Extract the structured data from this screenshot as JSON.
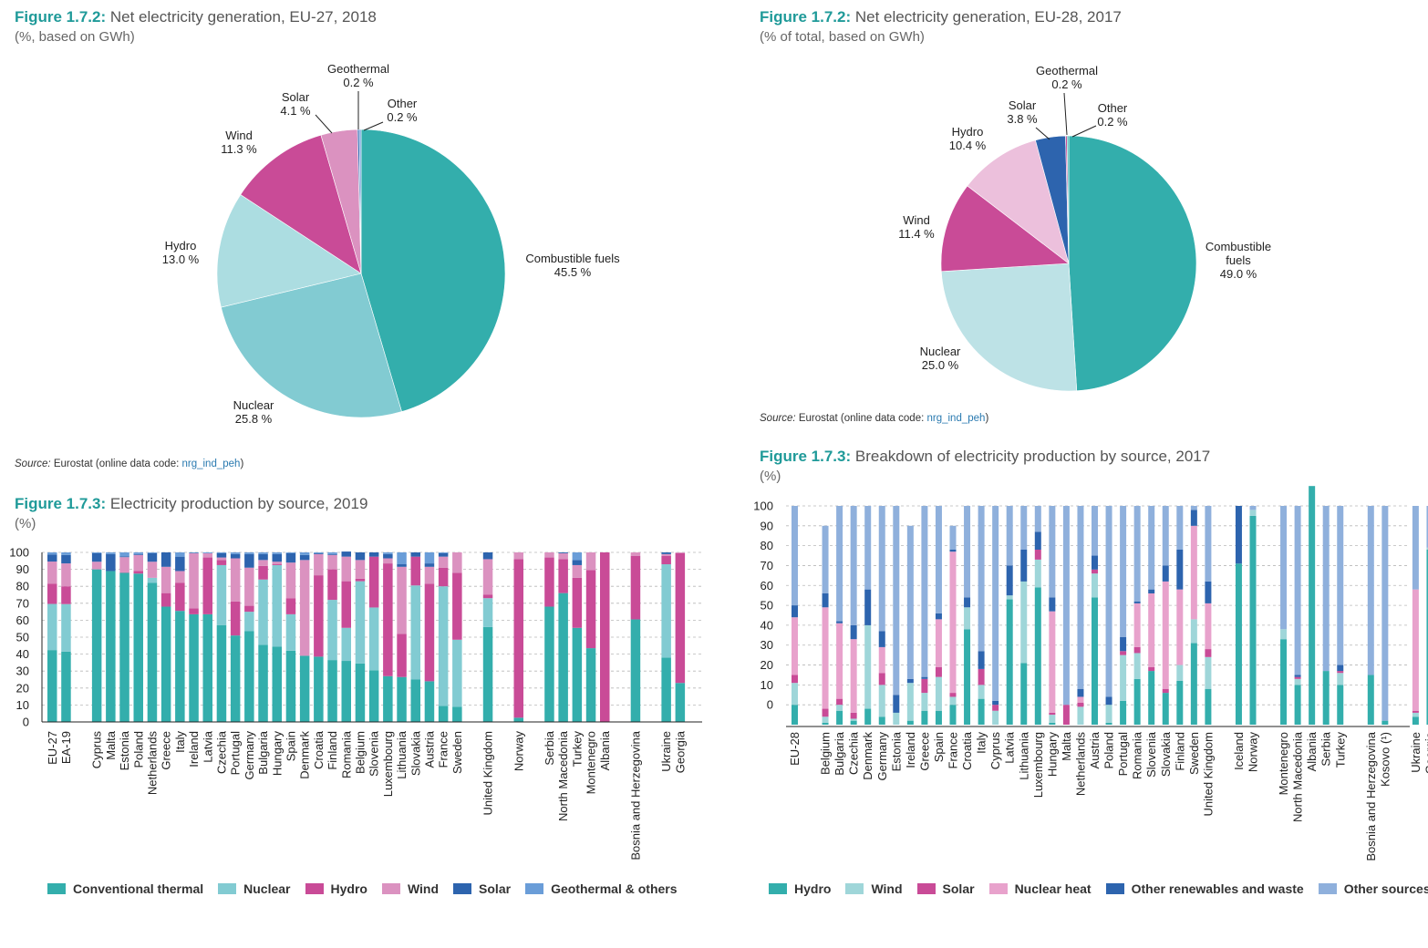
{
  "chart_data": [
    {
      "id": "pie2018",
      "type": "pie",
      "figure_number": "Figure 1.7.2:",
      "title": "Net electricity generation, EU-27, 2018",
      "subtitle": "(%, based on GWh)",
      "source_label": "Source:",
      "source_text": " Eurostat (online data code: ",
      "source_code": "nrg_ind_peh",
      "source_end": ")",
      "slices": [
        {
          "name": "Combustible fuels",
          "value": 45.5,
          "label": "45.5 %",
          "color": "#33aeac"
        },
        {
          "name": "Nuclear",
          "value": 25.8,
          "label": "25.8 %",
          "color": "#82cbd2"
        },
        {
          "name": "Hydro",
          "value": 13.0,
          "label": "13.0 %",
          "color": "#acdde1"
        },
        {
          "name": "Wind",
          "value": 11.3,
          "label": "11.3 %",
          "color": "#c94b97"
        },
        {
          "name": "Solar",
          "value": 4.1,
          "label": "4.1 %",
          "color": "#db92c0"
        },
        {
          "name": "Geothermal",
          "value": 0.2,
          "label": "0.2 %",
          "color": "#2d64ae"
        },
        {
          "name": "Other",
          "value": 0.2,
          "label": "0.2 %",
          "color": "#6a9dd8"
        }
      ]
    },
    {
      "id": "pie2017",
      "type": "pie",
      "figure_number": "Figure 1.7.2:",
      "title": "Net electricity generation, EU-28, 2017",
      "subtitle": "(% of total, based on GWh)",
      "source_label": "Source:",
      "source_text": " Eurostat (online data code: ",
      "source_code": "nrg_ind_peh",
      "source_end": ")",
      "slices": [
        {
          "name": "Combustible fuels",
          "value": 49.0,
          "label": "49.0 %",
          "color": "#33aeac"
        },
        {
          "name": "Nuclear",
          "value": 25.0,
          "label": "25.0 %",
          "color": "#bde2e6"
        },
        {
          "name": "Wind",
          "value": 11.4,
          "label": "11.4 %",
          "color": "#c94b97"
        },
        {
          "name": "Hydro",
          "value": 10.4,
          "label": "10.4 %",
          "color": "#ecc0dc"
        },
        {
          "name": "Solar",
          "value": 3.8,
          "label": "3.8 %",
          "color": "#2d64ae"
        },
        {
          "name": "Geothermal",
          "value": 0.2,
          "label": "0.2 %",
          "color": "#c94b97"
        },
        {
          "name": "Other",
          "value": 0.2,
          "label": "0.2 %",
          "color": "#33aeac"
        }
      ]
    },
    {
      "id": "bar2019",
      "type": "bar",
      "stacked": true,
      "figure_number": "Figure 1.7.3:",
      "title": "Electricity production by source, 2019",
      "subtitle": "(%)",
      "ylim": [
        0,
        100
      ],
      "yticks": [
        0,
        10,
        20,
        30,
        40,
        50,
        60,
        70,
        80,
        90,
        100
      ],
      "grid": true,
      "legend_position": "bottom",
      "series": [
        {
          "name": "Conventional thermal",
          "color": "#33aeac"
        },
        {
          "name": "Nuclear",
          "color": "#82cbd2"
        },
        {
          "name": "Hydro",
          "color": "#c94b97"
        },
        {
          "name": "Wind",
          "color": "#db92c0"
        },
        {
          "name": "Solar",
          "color": "#2d64ae"
        },
        {
          "name": "Geothermal & others",
          "color": "#6a9dd8"
        }
      ],
      "groups": [
        [
          [
            "EU-27",
            [
              42.4,
              27.2,
              12.0,
              13.0,
              4.1,
              1.3
            ]
          ],
          [
            "EA-19",
            [
              41.5,
              28.0,
              10.5,
              13.5,
              5.0,
              1.5
            ]
          ]
        ],
        [
          [
            "Cyprus",
            [
              90.0,
              0,
              0,
              4.5,
              5.0,
              0.5
            ]
          ],
          [
            "Malta",
            [
              89.0,
              0,
              0,
              0,
              10.0,
              1.0
            ]
          ],
          [
            "Estonia",
            [
              88.0,
              0,
              0.2,
              9.0,
              0.5,
              2.3
            ]
          ],
          [
            "Poland",
            [
              87.5,
              0,
              1.5,
              9.5,
              0.5,
              1.0
            ]
          ],
          [
            "Netherlands",
            [
              82.0,
              3.0,
              0,
              9.5,
              5.0,
              0.5
            ]
          ],
          [
            "Greece",
            [
              68.0,
              0,
              8.0,
              15.5,
              8.5,
              0
            ]
          ],
          [
            "Italy",
            [
              65.5,
              0,
              16.5,
              7.0,
              8.5,
              2.5
            ]
          ],
          [
            "Ireland",
            [
              63.5,
              0,
              3.5,
              32.5,
              0.3,
              0.2
            ]
          ],
          [
            "Latvia",
            [
              63.5,
              0,
              33.5,
              2.5,
              0,
              0.5
            ]
          ],
          [
            "Czechia",
            [
              57.0,
              35.5,
              3.0,
              1.5,
              2.5,
              0.5
            ]
          ],
          [
            "Portugal",
            [
              51.0,
              0,
              20.0,
              25.5,
              2.5,
              1.0
            ]
          ],
          [
            "Germany",
            [
              53.5,
              11.5,
              3.5,
              22.5,
              8.0,
              1.0
            ]
          ],
          [
            "Bulgaria",
            [
              45.5,
              38.5,
              8.0,
              3.5,
              3.5,
              1.0
            ]
          ],
          [
            "Hungary",
            [
              44.5,
              48.0,
              0.5,
              1.5,
              4.5,
              1.0
            ]
          ],
          [
            "Spain",
            [
              42.0,
              21.5,
              9.5,
              21.0,
              5.5,
              0.5
            ]
          ],
          [
            "Denmark",
            [
              39.0,
              0,
              0,
              56.5,
              3.0,
              1.5
            ]
          ],
          [
            "Croatia",
            [
              38.5,
              0,
              48.0,
              12.5,
              0.5,
              0.5
            ]
          ],
          [
            "Finland",
            [
              36.5,
              35.5,
              18.0,
              8.5,
              0.5,
              1.0
            ]
          ],
          [
            "Romania",
            [
              36.0,
              19.5,
              27.5,
              14.5,
              3.0,
              0
            ]
          ],
          [
            "Belgium",
            [
              34.5,
              48.5,
              1.5,
              11.0,
              4.5,
              0
            ]
          ],
          [
            "Slovenia",
            [
              30.5,
              37.0,
              30.0,
              0,
              2.5,
              0
            ]
          ],
          [
            "Luxembourg",
            [
              27.0,
              0,
              66.5,
              3.0,
              2.5,
              1.0
            ]
          ],
          [
            "Lithuania",
            [
              26.5,
              0,
              25.5,
              39.5,
              1.5,
              7.0
            ]
          ],
          [
            "Slovakia",
            [
              25.0,
              55.5,
              17.0,
              0,
              2.5,
              0
            ]
          ],
          [
            "Austria",
            [
              24.0,
              0,
              57.5,
              10.0,
              2.0,
              6.5
            ]
          ],
          [
            "France",
            [
              9.5,
              70.5,
              11.0,
              6.5,
              2.0,
              0.5
            ]
          ],
          [
            "Sweden",
            [
              9.0,
              39.5,
              39.5,
              12.0,
              0,
              0
            ]
          ]
        ],
        [
          [
            "United Kingdom",
            [
              56.0,
              17.0,
              2.0,
              21.0,
              4.0,
              0
            ]
          ]
        ],
        [
          [
            "Norway",
            [
              2.5,
              0,
              93.5,
              4.0,
              0,
              0
            ]
          ]
        ],
        [
          [
            "Serbia",
            [
              68.0,
              0,
              29.0,
              3.0,
              0,
              0
            ]
          ],
          [
            "North Macedonia",
            [
              76.0,
              0,
              20.0,
              3.5,
              0.5,
              0
            ]
          ],
          [
            "Turkey",
            [
              55.5,
              0,
              29.5,
              7.5,
              3.0,
              4.5
            ]
          ],
          [
            "Montenegro",
            [
              43.5,
              0,
              46.0,
              10.5,
              0,
              0
            ]
          ],
          [
            "Albania",
            [
              0,
              0,
              100.0,
              0,
              0,
              0
            ]
          ]
        ],
        [
          [
            "Bosnia and Herzegovina",
            [
              60.5,
              0,
              37.5,
              2.0,
              0,
              0
            ]
          ]
        ],
        [
          [
            "Ukraine",
            [
              38.0,
              55.0,
              5.0,
              1.0,
              1.0,
              0
            ]
          ],
          [
            "Georgia",
            [
              23.0,
              0,
              76.5,
              0.5,
              0,
              0
            ]
          ]
        ]
      ]
    },
    {
      "id": "bar2017",
      "type": "bar",
      "stacked": true,
      "figure_number": "Figure 1.7.3:",
      "title": "Breakdown of electricity production by source, 2017",
      "subtitle": "(%)",
      "ylim": [
        -10,
        100
      ],
      "yticks": [
        0,
        10,
        20,
        30,
        40,
        50,
        60,
        70,
        80,
        90,
        100
      ],
      "grid": true,
      "legend_position": "bottom",
      "series": [
        {
          "name": "Hydro",
          "color": "#33aeac"
        },
        {
          "name": "Wind",
          "color": "#9fd6d9"
        },
        {
          "name": "Solar",
          "color": "#c94b97"
        },
        {
          "name": "Nuclear heat",
          "color": "#e8a2cc"
        },
        {
          "name": "Other renewables and waste",
          "color": "#2d64ae"
        },
        {
          "name": "Other sources",
          "color": "#8fb0dc"
        }
      ],
      "groups": [
        [
          [
            "EU-28",
            [
              10,
              11,
              4,
              29,
              6,
              50
            ]
          ]
        ],
        [
          [
            "Belgium",
            [
              1,
              3,
              4,
              51,
              7,
              34
            ]
          ],
          [
            "Bulgaria",
            [
              7,
              3,
              3,
              38,
              1,
              58
            ]
          ],
          [
            "Czechia",
            [
              2,
              1,
              3,
              37,
              7,
              60
            ]
          ],
          [
            "Denmark",
            [
              8,
              42,
              0,
              0,
              18,
              42
            ]
          ],
          [
            "Germany",
            [
              4,
              16,
              6,
              13,
              8,
              63
            ]
          ],
          [
            "Estonia",
            [
              0,
              6,
              0,
              0,
              9,
              95
            ]
          ],
          [
            "Ireland",
            [
              2,
              19,
              0,
              0,
              2,
              77
            ]
          ],
          [
            "Greece",
            [
              7,
              9,
              7,
              0,
              1,
              86
            ]
          ],
          [
            "Spain",
            [
              7,
              17,
              5,
              24,
              3,
              54
            ]
          ],
          [
            "France",
            [
              10,
              4,
              2,
              71,
              1,
              12
            ]
          ],
          [
            "Croatia",
            [
              48,
              11,
              0,
              0,
              5,
              46
            ]
          ],
          [
            "Italy",
            [
              13,
              7,
              8,
              0,
              9,
              73
            ]
          ],
          [
            "Cyprus",
            [
              0,
              7,
              3,
              0,
              2,
              98
            ]
          ],
          [
            "Latvia",
            [
              63,
              2,
              0,
              0,
              15,
              30
            ]
          ],
          [
            "Lithuania",
            [
              31,
              41,
              0,
              0,
              16,
              22
            ]
          ],
          [
            "Luxembourg",
            [
              69,
              14,
              5,
              0,
              9,
              13
            ]
          ],
          [
            "Hungary",
            [
              1,
              4,
              1,
              51,
              7,
              46
            ]
          ],
          [
            "Malta",
            [
              0,
              0,
              10,
              0,
              0,
              100
            ]
          ],
          [
            "Netherlands",
            [
              0,
              9,
              2,
              3,
              4,
              92
            ]
          ],
          [
            "Austria",
            [
              64,
              12,
              2,
              0,
              7,
              25
            ]
          ],
          [
            "Poland",
            [
              1,
              9,
              0,
              0,
              4,
              96
            ]
          ],
          [
            "Portugal",
            [
              12,
              23,
              2,
              0,
              7,
              66
            ]
          ],
          [
            "Romania",
            [
              23,
              13,
              3,
              22,
              1,
              48
            ]
          ],
          [
            "Slovenia",
            [
              27,
              0,
              2,
              37,
              2,
              42
            ]
          ],
          [
            "Slovakia",
            [
              16,
              0,
              2,
              54,
              8,
              30
            ]
          ],
          [
            "Finland",
            [
              22,
              8,
              0,
              38,
              20,
              22
            ]
          ],
          [
            "Sweden",
            [
              41,
              12,
              0,
              47,
              8,
              2
            ]
          ],
          [
            "United Kingdom",
            [
              18,
              16,
              4,
              23,
              11,
              38
            ]
          ]
        ],
        [
          [
            "Iceland",
            [
              81,
              0,
              0,
              0,
              29,
              0
            ]
          ],
          [
            "Norway",
            [
              105,
              3,
              0,
              0,
              0,
              2
            ]
          ]
        ],
        [
          [
            "Montenegro",
            [
              43,
              5,
              0,
              0,
              0,
              62
            ]
          ],
          [
            "North Macedonia",
            [
              20,
              3,
              1,
              0,
              1,
              85
            ]
          ],
          [
            "Albania",
            [
              120,
              0,
              0,
              0,
              0,
              0
            ]
          ],
          [
            "Serbia",
            [
              27,
              0,
              0,
              0,
              0,
              83
            ]
          ],
          [
            "Turkey",
            [
              20,
              6,
              1,
              0,
              3,
              80
            ]
          ]
        ],
        [
          [
            "Bosnia and Herzegovina",
            [
              25,
              0,
              0,
              0,
              0,
              85
            ]
          ],
          [
            "Kosovo (¹)",
            [
              2,
              0,
              0,
              0,
              0,
              108
            ]
          ]
        ],
        [
          [
            "Ukraine",
            [
              4,
              2,
              1,
              61,
              0,
              42
            ]
          ],
          [
            "Georgia",
            [
              88,
              1,
              0,
              0,
              0,
              21
            ]
          ]
        ]
      ]
    }
  ]
}
